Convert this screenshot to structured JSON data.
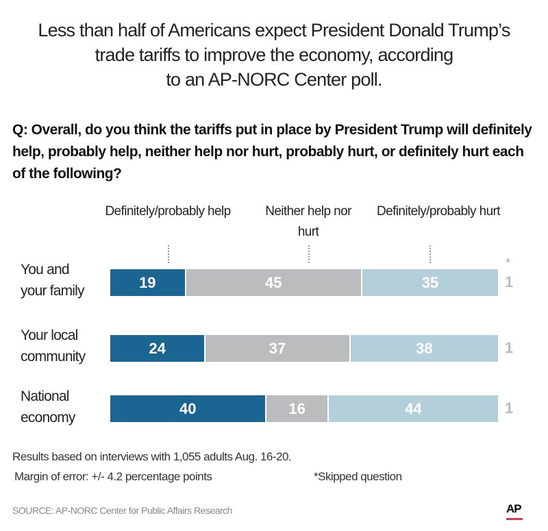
{
  "title": [
    "Less than half of Americans expect President Donald Trump’s",
    "trade tariffs to improve the economy, according",
    "to an AP-NORC Center poll."
  ],
  "question": "Q: Overall, do you think the tariffs put in place by President Trump will definitely help, probably help, neither help nor hurt, probably hurt, or definitely hurt each of the following?",
  "chart_data": {
    "type": "bar",
    "stacked": true,
    "orientation": "horizontal",
    "categories": [
      "You and your family",
      "Your local community",
      "National economy"
    ],
    "category_lines": [
      [
        "You and",
        "your family"
      ],
      [
        "Your local",
        "community"
      ],
      [
        "National",
        "economy"
      ]
    ],
    "series": [
      {
        "name": "Definitely/probably help",
        "values": [
          19,
          24,
          40
        ],
        "color": "#1a6591"
      },
      {
        "name": "Neither help nor hurt",
        "values": [
          45,
          37,
          16
        ],
        "color": "#bbbcbe"
      },
      {
        "name": "Definitely/probably hurt",
        "values": [
          35,
          38,
          44
        ],
        "color": "#b3d0da"
      }
    ],
    "column_headers": [
      "Definitely/probably help",
      "Neither help nor",
      "hurt",
      "Definitely/probably hurt"
    ],
    "skipped": {
      "marker": "*",
      "values": [
        "1",
        "1",
        "1"
      ]
    }
  },
  "notes": {
    "line1": "Results based on interviews with 1,055 adults Aug. 16-20.",
    "line2": "Margin of error: +/- 4.2 percentage points",
    "skipped": "*Skipped question"
  },
  "source": "SOURCE: AP-NORC Center for Public Affairs Research",
  "logo": "AP"
}
